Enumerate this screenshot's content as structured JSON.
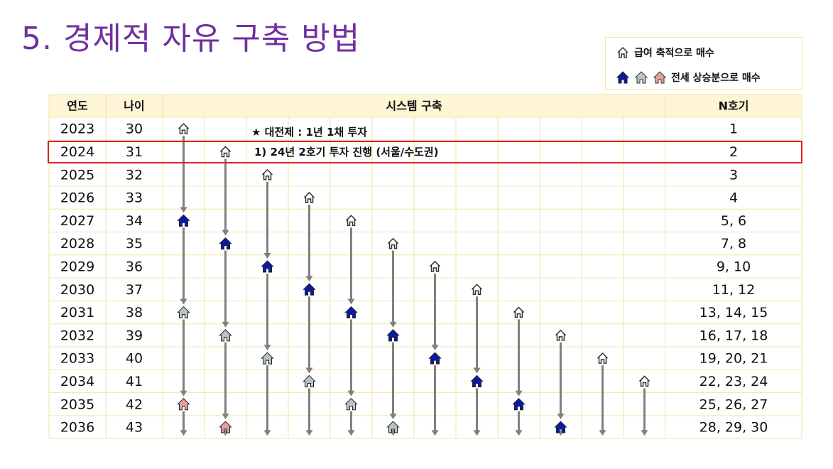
{
  "title": "5. 경제적 자유 구축 방법",
  "legend": {
    "salary_label": "급여 축적으로 매수",
    "jeonse_label": "전세 상승분으로 매수"
  },
  "table": {
    "headers": {
      "year": "연도",
      "age": "나이",
      "system": "시스템 구축",
      "n": "N호기"
    },
    "rows": [
      {
        "year": "2023",
        "age": "30",
        "n": "1"
      },
      {
        "year": "2024",
        "age": "31",
        "n": "2"
      },
      {
        "year": "2025",
        "age": "32",
        "n": "3"
      },
      {
        "year": "2026",
        "age": "33",
        "n": "4"
      },
      {
        "year": "2027",
        "age": "34",
        "n": "5, 6"
      },
      {
        "year": "2028",
        "age": "35",
        "n": "7, 8"
      },
      {
        "year": "2029",
        "age": "36",
        "n": "9, 10"
      },
      {
        "year": "2030",
        "age": "37",
        "n": "11, 12"
      },
      {
        "year": "2031",
        "age": "38",
        "n": "13, 14, 15"
      },
      {
        "year": "2032",
        "age": "39",
        "n": "16, 17, 18"
      },
      {
        "year": "2033",
        "age": "40",
        "n": "19, 20, 21"
      },
      {
        "year": "2034",
        "age": "41",
        "n": "22, 23, 24"
      },
      {
        "year": "2035",
        "age": "42",
        "n": "25, 26, 27"
      },
      {
        "year": "2036",
        "age": "43",
        "n": "28, 29, 30"
      }
    ],
    "system_columns": 12
  },
  "notes": {
    "premise": "★ 대전제 : 1년 1채 투자",
    "point1": "1) 24년 2호기 투자 진행 (서울/수도권)"
  },
  "icons": [
    {
      "col": 0,
      "row": 0,
      "type": "salary"
    },
    {
      "col": 0,
      "row": 4,
      "type": "jeonse-blue"
    },
    {
      "col": 0,
      "row": 8,
      "type": "jeonse-gray"
    },
    {
      "col": 0,
      "row": 12,
      "type": "jeonse-pink"
    },
    {
      "col": 1,
      "row": 1,
      "type": "salary"
    },
    {
      "col": 1,
      "row": 5,
      "type": "jeonse-blue"
    },
    {
      "col": 1,
      "row": 9,
      "type": "jeonse-gray"
    },
    {
      "col": 1,
      "row": 13,
      "type": "jeonse-pink"
    },
    {
      "col": 2,
      "row": 2,
      "type": "salary"
    },
    {
      "col": 2,
      "row": 6,
      "type": "jeonse-blue"
    },
    {
      "col": 2,
      "row": 10,
      "type": "jeonse-gray"
    },
    {
      "col": 3,
      "row": 3,
      "type": "salary"
    },
    {
      "col": 3,
      "row": 7,
      "type": "jeonse-blue"
    },
    {
      "col": 3,
      "row": 11,
      "type": "jeonse-gray"
    },
    {
      "col": 4,
      "row": 4,
      "type": "salary"
    },
    {
      "col": 4,
      "row": 8,
      "type": "jeonse-blue"
    },
    {
      "col": 4,
      "row": 12,
      "type": "jeonse-gray"
    },
    {
      "col": 5,
      "row": 5,
      "type": "salary"
    },
    {
      "col": 5,
      "row": 9,
      "type": "jeonse-blue"
    },
    {
      "col": 5,
      "row": 13,
      "type": "jeonse-gray"
    },
    {
      "col": 6,
      "row": 6,
      "type": "salary"
    },
    {
      "col": 6,
      "row": 10,
      "type": "jeonse-blue"
    },
    {
      "col": 7,
      "row": 7,
      "type": "salary"
    },
    {
      "col": 7,
      "row": 11,
      "type": "jeonse-blue"
    },
    {
      "col": 8,
      "row": 8,
      "type": "salary"
    },
    {
      "col": 8,
      "row": 12,
      "type": "jeonse-blue"
    },
    {
      "col": 9,
      "row": 9,
      "type": "salary"
    },
    {
      "col": 9,
      "row": 13,
      "type": "jeonse-blue"
    },
    {
      "col": 10,
      "row": 10,
      "type": "salary"
    },
    {
      "col": 11,
      "row": 11,
      "type": "salary"
    }
  ],
  "colors": {
    "title": "#7030a0",
    "grid": "#f2e6a6",
    "header_bg": "#fdf5d6",
    "arrow": "#808080",
    "salary_fill": "#ffffff",
    "blue_fill": "#0a1aa8",
    "gray_fill": "#b8c4c4",
    "pink_fill": "#e8a0a0",
    "highlight": "#e02020"
  }
}
